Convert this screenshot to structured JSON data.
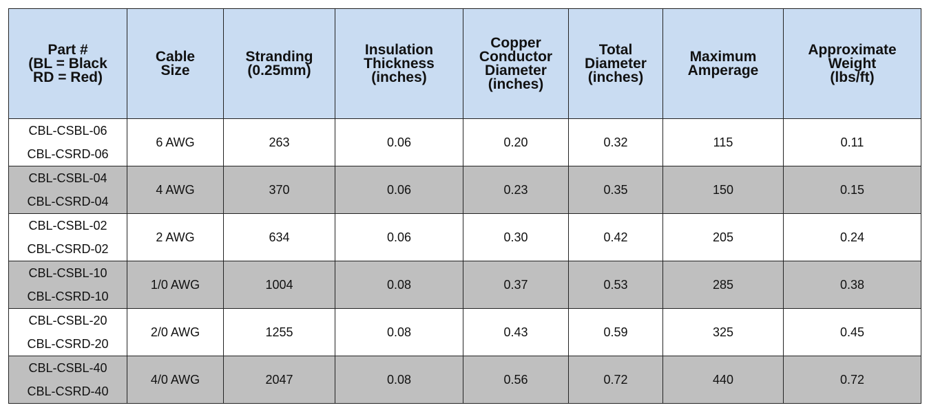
{
  "table": {
    "header": [
      [
        "Part #",
        "(BL = Black",
        "RD = Red)"
      ],
      [
        "Cable",
        "Size"
      ],
      [
        "Stranding",
        "(0.25mm)"
      ],
      [
        "Insulation",
        "Thickness",
        "(inches)"
      ],
      [
        "Copper",
        "Conductor",
        "Diameter",
        "(inches)"
      ],
      [
        "Total",
        "Diameter",
        "(inches)"
      ],
      [
        "Maximum",
        "Amperage"
      ],
      [
        "Approximate",
        "Weight",
        "(lbs/ft)"
      ]
    ],
    "rows": [
      [
        [
          "CBL-CSBL-06",
          "CBL-CSRD-06"
        ],
        "6 AWG",
        "263",
        "0.06",
        "0.20",
        "0.32",
        "115",
        "0.11"
      ],
      [
        [
          "CBL-CSBL-04",
          "CBL-CSRD-04"
        ],
        "4 AWG",
        "370",
        "0.06",
        "0.23",
        "0.35",
        "150",
        "0.15"
      ],
      [
        [
          "CBL-CSBL-02",
          "CBL-CSRD-02"
        ],
        "2 AWG",
        "634",
        "0.06",
        "0.30",
        "0.42",
        "205",
        "0.24"
      ],
      [
        [
          "CBL-CSBL-10",
          "CBL-CSRD-10"
        ],
        "1/0 AWG",
        "1004",
        "0.08",
        "0.37",
        "0.53",
        "285",
        "0.38"
      ],
      [
        [
          "CBL-CSBL-20",
          "CBL-CSRD-20"
        ],
        "2/0 AWG",
        "1255",
        "0.08",
        "0.43",
        "0.59",
        "325",
        "0.45"
      ],
      [
        [
          "CBL-CSBL-40",
          "CBL-CSRD-40"
        ],
        "4/0 AWG",
        "2047",
        "0.08",
        "0.56",
        "0.72",
        "440",
        "0.72"
      ]
    ]
  }
}
